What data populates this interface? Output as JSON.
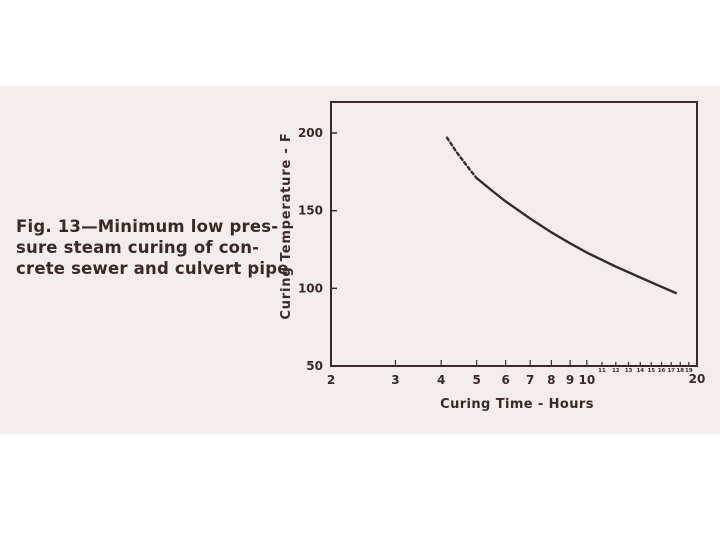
{
  "caption": {
    "lines": [
      "Fig. 13—Minimum low pres-",
      "sure steam curing of con-",
      "crete sewer and culvert pipe"
    ]
  },
  "chart_data": {
    "type": "line",
    "xlabel": "Curing Time - Hours",
    "ylabel": "Curing Temperature - F",
    "xscale": "log",
    "xlim": [
      2,
      20
    ],
    "ylim": [
      50,
      220
    ],
    "grid": false,
    "x_ticks": [
      {
        "value": 2,
        "label": "2",
        "size": "large"
      },
      {
        "value": 3,
        "label": "3",
        "size": "large"
      },
      {
        "value": 4,
        "label": "4",
        "size": "large"
      },
      {
        "value": 5,
        "label": "5",
        "size": "large"
      },
      {
        "value": 6,
        "label": "6",
        "size": "large"
      },
      {
        "value": 7,
        "label": "7",
        "size": "large"
      },
      {
        "value": 8,
        "label": "8",
        "size": "large"
      },
      {
        "value": 9,
        "label": "9",
        "size": "large"
      },
      {
        "value": 10,
        "label": "10",
        "size": "large"
      },
      {
        "value": 11,
        "label": "11",
        "size": "small"
      },
      {
        "value": 12,
        "label": "12",
        "size": "small"
      },
      {
        "value": 13,
        "label": "13",
        "size": "small"
      },
      {
        "value": 14,
        "label": "14",
        "size": "small"
      },
      {
        "value": 15,
        "label": "15",
        "size": "small"
      },
      {
        "value": 16,
        "label": "16",
        "size": "small"
      },
      {
        "value": 17,
        "label": "17",
        "size": "small"
      },
      {
        "value": 18,
        "label": "18",
        "size": "small"
      },
      {
        "value": 19,
        "label": "19",
        "size": "small"
      },
      {
        "value": 20,
        "label": "20",
        "size": "large"
      }
    ],
    "y_ticks": [
      {
        "value": 50,
        "label": "50"
      },
      {
        "value": 100,
        "label": "100"
      },
      {
        "value": 150,
        "label": "150"
      },
      {
        "value": 200,
        "label": "200"
      }
    ],
    "series": [
      {
        "style": "dashed",
        "points": [
          [
            4.15,
            197
          ],
          [
            4.4,
            188
          ],
          [
            4.7,
            179
          ],
          [
            5.0,
            171
          ]
        ]
      },
      {
        "style": "solid",
        "points": [
          [
            5.0,
            171
          ],
          [
            5.5,
            163
          ],
          [
            6.0,
            156
          ],
          [
            7.0,
            145
          ],
          [
            8.0,
            136
          ],
          [
            9.0,
            129
          ],
          [
            10.0,
            123
          ],
          [
            12.0,
            114
          ],
          [
            14.0,
            107
          ],
          [
            16.0,
            101
          ],
          [
            17.5,
            97
          ]
        ]
      }
    ],
    "colors": {
      "ink": "#3a2a27",
      "background": "#f3eeec"
    }
  }
}
